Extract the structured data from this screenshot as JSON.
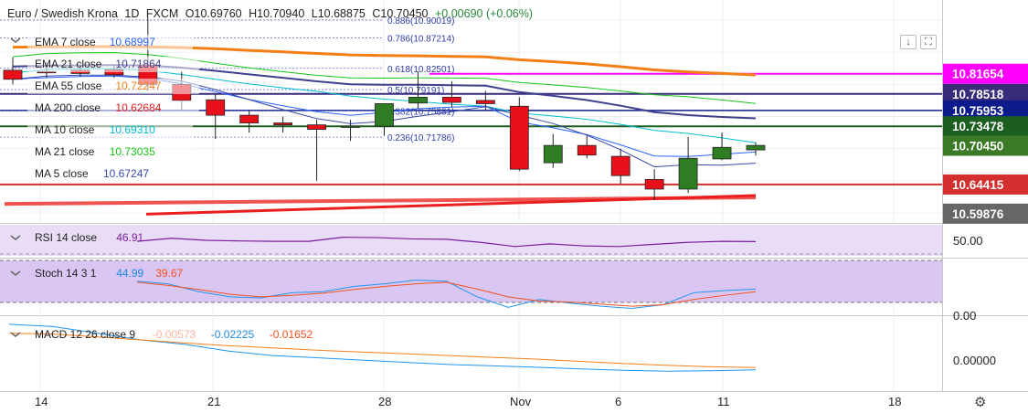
{
  "header": {
    "symbol": "Euro / Swedish Krona",
    "interval": "1D",
    "exchange": "FXCM",
    "o": "O10.69760",
    "h": "H10.70940",
    "l": "L10.68875",
    "c": "C10.70450",
    "change": "+0.00690 (+0.06%)"
  },
  "legend": [
    {
      "label": "EMA 7 close",
      "value": "10.68997",
      "color": "#2962ff"
    },
    {
      "label": "EMA 21 close",
      "value": "10.71864",
      "color": "#3f3f8f"
    },
    {
      "label": "EMA 55 close",
      "value": "10.72247",
      "color": "#f57f17"
    },
    {
      "label": "MA 200 close",
      "value": "10.62684",
      "color": "#e91e1e"
    },
    {
      "label": "MA 10 close",
      "value": "10.69310",
      "color": "#00bcd4"
    },
    {
      "label": "MA 21 close",
      "value": "10.73035",
      "color": "#16c616"
    },
    {
      "label": "MA 5 close",
      "value": "10.67247",
      "color": "#3949ab"
    }
  ],
  "indicators": {
    "rsi": {
      "label": "RSI 14 close",
      "value": "46.91",
      "value_color": "#7b1fa2"
    },
    "stoch": {
      "label": "Stoch 14 3 1",
      "k": "44.99",
      "d": "39.67"
    },
    "macd": {
      "label": "MACD 12 26 close 9",
      "hist": "-0.00573",
      "macd": "-0.02225",
      "signal": "-0.01652"
    }
  },
  "fib_labels": [
    {
      "text": "0.886(10.90019)",
      "price": 10.90019
    },
    {
      "text": "0.786(10.87214)",
      "price": 10.87214
    },
    {
      "text": "0.618(10.82501)",
      "price": 10.82501
    },
    {
      "text": "0.5(10.79191)",
      "price": 10.79191
    },
    {
      "text": "0.382(10.75881)",
      "price": 10.75881
    },
    {
      "text": "0.236(10.71786)",
      "price": 10.71786
    }
  ],
  "price_labels": [
    {
      "text": "10.81654",
      "bg": "#ff00ff",
      "fg": "#ffffff"
    },
    {
      "text": "10.78518",
      "bg": "#3a2a7a",
      "fg": "#ffffff"
    },
    {
      "text": "10.75953",
      "bg": "#0d1a8a",
      "fg": "#ffffff"
    },
    {
      "text": "10.73478",
      "bg": "#1b5e20",
      "fg": "#ffffff"
    },
    {
      "text": "10.70450",
      "bg": "#3d7a26",
      "fg": "#ffffff"
    },
    {
      "text": "10.64415",
      "bg": "#d32f2f",
      "fg": "#ffffff"
    },
    {
      "text": "10.59876",
      "bg": "#666666",
      "fg": "#ffffff"
    }
  ],
  "axis_labels": {
    "rsi": "50.00",
    "stoch": "0.00",
    "macd": "0.00000"
  },
  "x_ticks": [
    "14",
    "21",
    "28",
    "Nov",
    "6",
    "11",
    "18"
  ],
  "chart_data": {
    "type": "candlestick",
    "title": "Euro / Swedish Krona",
    "interval": "1D",
    "ylim": [
      10.59,
      10.92
    ],
    "candles": [
      {
        "o": 10.822,
        "h": 10.842,
        "l": 10.8,
        "c": 10.808
      },
      {
        "o": 10.82,
        "h": 10.835,
        "l": 10.81,
        "c": 10.818
      },
      {
        "o": 10.822,
        "h": 10.83,
        "l": 10.812,
        "c": 10.817
      },
      {
        "o": 10.823,
        "h": 10.83,
        "l": 10.81,
        "c": 10.815
      },
      {
        "o": 10.83,
        "h": 10.905,
        "l": 10.79,
        "c": 10.8
      },
      {
        "o": 10.8,
        "h": 10.82,
        "l": 10.76,
        "c": 10.775
      },
      {
        "o": 10.776,
        "h": 10.785,
        "l": 10.715,
        "c": 10.752
      },
      {
        "o": 10.752,
        "h": 10.76,
        "l": 10.725,
        "c": 10.74
      },
      {
        "o": 10.74,
        "h": 10.75,
        "l": 10.725,
        "c": 10.737
      },
      {
        "o": 10.737,
        "h": 10.745,
        "l": 10.65,
        "c": 10.73
      },
      {
        "o": 10.733,
        "h": 10.745,
        "l": 10.712,
        "c": 10.735
      },
      {
        "o": 10.735,
        "h": 10.77,
        "l": 10.72,
        "c": 10.77
      },
      {
        "o": 10.771,
        "h": 10.82,
        "l": 10.762,
        "c": 10.78
      },
      {
        "o": 10.78,
        "h": 10.805,
        "l": 10.765,
        "c": 10.772
      },
      {
        "o": 10.775,
        "h": 10.79,
        "l": 10.76,
        "c": 10.77
      },
      {
        "o": 10.766,
        "h": 10.78,
        "l": 10.665,
        "c": 10.668
      },
      {
        "o": 10.678,
        "h": 10.723,
        "l": 10.67,
        "c": 10.705
      },
      {
        "o": 10.705,
        "h": 10.72,
        "l": 10.685,
        "c": 10.69
      },
      {
        "o": 10.688,
        "h": 10.7,
        "l": 10.645,
        "c": 10.658
      },
      {
        "o": 10.652,
        "h": 10.668,
        "l": 10.62,
        "c": 10.637
      },
      {
        "o": 10.637,
        "h": 10.718,
        "l": 10.631,
        "c": 10.685
      },
      {
        "o": 10.684,
        "h": 10.725,
        "l": 10.682,
        "c": 10.702
      },
      {
        "o": 10.698,
        "h": 10.71,
        "l": 10.689,
        "c": 10.705
      }
    ],
    "rsi": [
      47,
      48.5,
      47.5,
      47.2,
      47,
      47,
      49,
      48.8,
      48.2,
      48,
      46.5,
      44.5,
      45.8,
      44.8,
      44.5,
      45.5,
      46.5,
      47,
      46.9
    ],
    "stoch_k": [
      60,
      55,
      40,
      30,
      28,
      38,
      40,
      50,
      55,
      62,
      60,
      30,
      10,
      25,
      18,
      12,
      8,
      15,
      38,
      42,
      45
    ],
    "stoch_d": [
      58,
      52,
      44,
      35,
      30,
      33,
      37,
      44,
      50,
      55,
      58,
      45,
      30,
      22,
      20,
      16,
      12,
      15,
      25,
      33,
      40
    ],
    "macd": [
      0.08,
      0.075,
      0.06,
      0.045,
      0.035,
      0.02,
      0.01,
      0.005,
      0.0,
      -0.005,
      -0.01,
      -0.013,
      -0.016,
      -0.02,
      -0.023,
      -0.025,
      -0.024,
      -0.022
    ],
    "signal": [
      0.06,
      0.058,
      0.052,
      0.045,
      0.038,
      0.032,
      0.027,
      0.022,
      0.018,
      0.014,
      0.01,
      0.006,
      0.002,
      -0.003,
      -0.008,
      -0.012,
      -0.015,
      -0.017
    ]
  }
}
